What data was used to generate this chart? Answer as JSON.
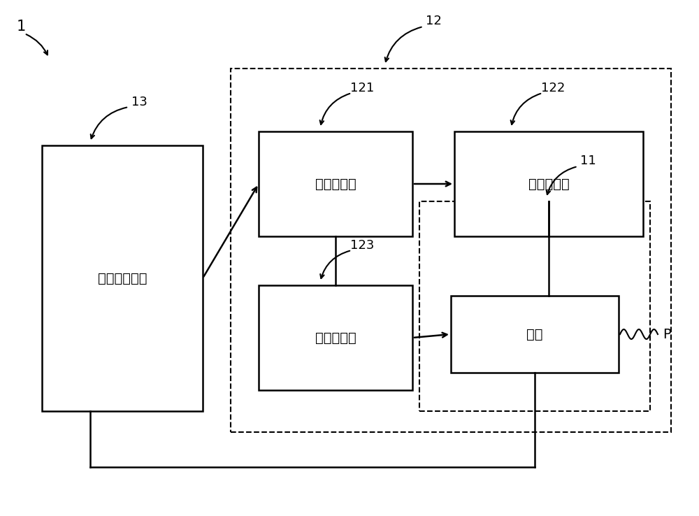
{
  "bg_color": "#ffffff",
  "line_color": "#000000",
  "dashed_color": "#000000",
  "box_color": "#ffffff",
  "text_color": "#000000",
  "label_1": "1",
  "label_12": "12",
  "label_13": "13",
  "label_121": "121",
  "label_122": "122",
  "label_123": "123",
  "label_11": "11",
  "label_P": "P",
  "text_power": "电源产生电路",
  "text_timing": "时序控制器",
  "text_source_drv": "源极驱动器",
  "text_gate_drv": "栅极驱动器",
  "text_pixel": "像素",
  "figsize": [
    10.0,
    7.38
  ],
  "dpi": 100
}
